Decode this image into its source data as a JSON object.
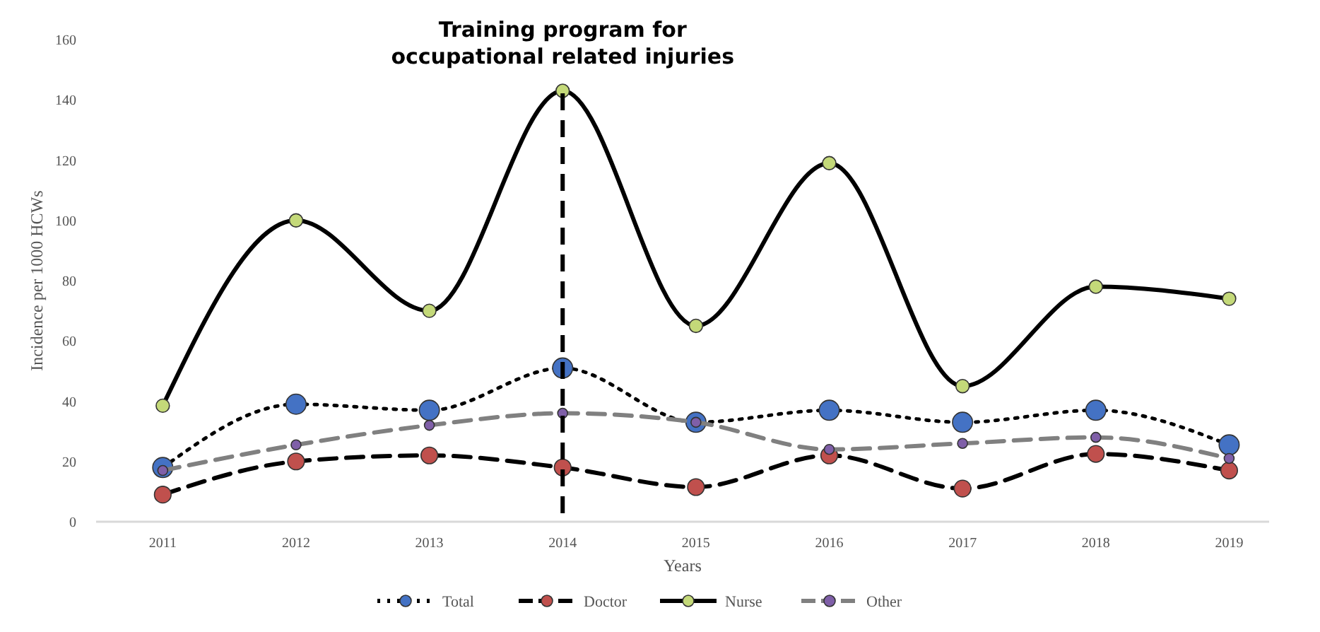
{
  "chart_data": {
    "type": "line",
    "xlabel": "Years",
    "ylabel": "Incidence per 1000 HCWs",
    "x": [
      2011,
      2012,
      2013,
      2014,
      2015,
      2016,
      2017,
      2018,
      2019
    ],
    "xlim": [
      2010.5,
      2019.3
    ],
    "xticks": [
      2011,
      2012,
      2013,
      2014,
      2015,
      2016,
      2017,
      2018,
      2019
    ],
    "ylim": [
      0,
      160
    ],
    "yticks": [
      0,
      20,
      40,
      60,
      80,
      100,
      120,
      140,
      160
    ],
    "series": [
      {
        "name": "Total",
        "color": "#4472c4",
        "line_style": "dotted",
        "values": [
          18,
          39,
          37,
          51,
          33,
          37,
          33,
          37,
          25.5
        ]
      },
      {
        "name": "Doctor",
        "color": "#c0504d",
        "line_style": "dashed",
        "values": [
          9,
          20,
          22,
          18,
          11.5,
          22,
          11,
          22.5,
          17
        ]
      },
      {
        "name": "Nurse",
        "color": "#c4d979",
        "line_style": "solid",
        "values": [
          38.5,
          100,
          70,
          143,
          65,
          119,
          45,
          78,
          74
        ]
      },
      {
        "name": "Other",
        "color": "#7f5fa8",
        "line_style": "dashed",
        "values": [
          17,
          25.5,
          32,
          36,
          33,
          24,
          26,
          28,
          21
        ]
      }
    ],
    "ref_lines": [
      {
        "axis": "x",
        "value": 2014,
        "label": "Training program for occupational related injuries",
        "line_style": "dashed"
      }
    ],
    "marker": "circle",
    "grid": false,
    "legend": "bottom"
  }
}
